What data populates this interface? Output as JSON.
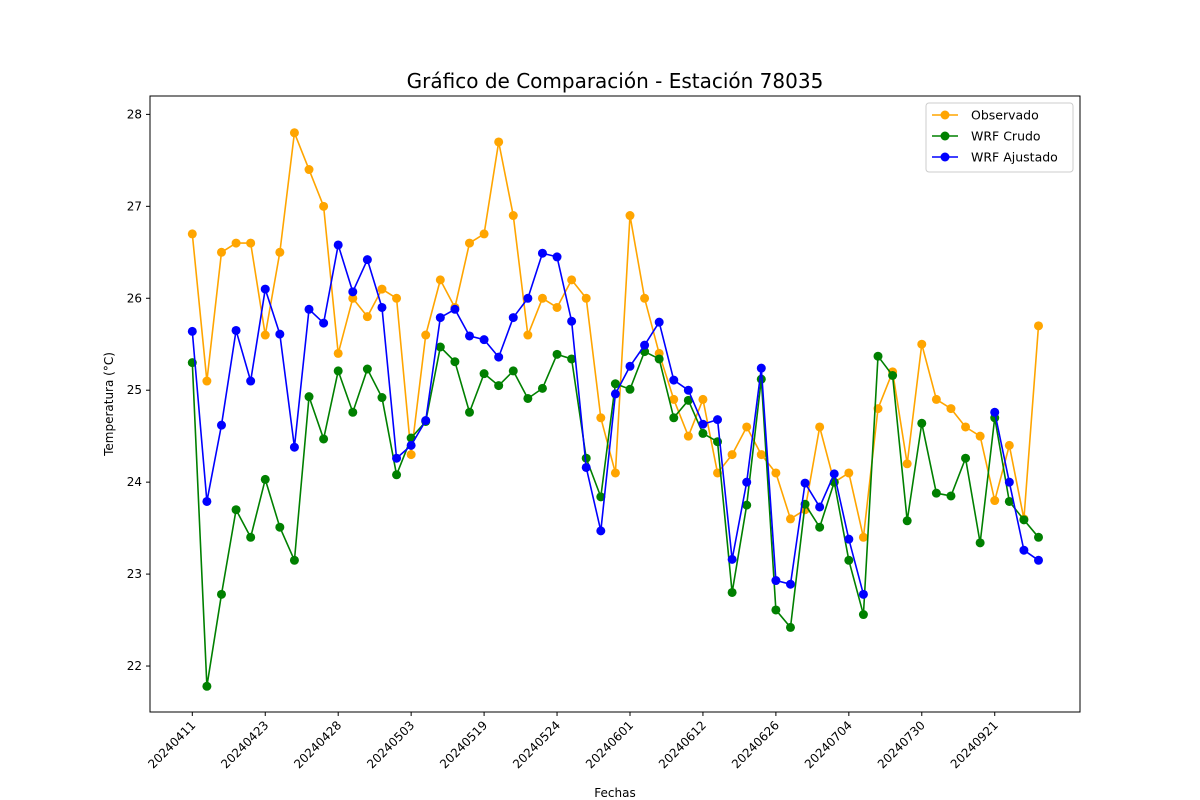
{
  "chart_data": {
    "type": "line",
    "title": "Gráfico de Comparación - Estación 78035",
    "xlabel": "Fechas",
    "ylabel": "Temperatura (°C)",
    "ylim": [
      21.5,
      28.2
    ],
    "yticks": [
      22,
      23,
      24,
      25,
      26,
      27,
      28
    ],
    "xticks": [
      {
        "index": 0,
        "label": "20240411"
      },
      {
        "index": 5,
        "label": "20240423"
      },
      {
        "index": 10,
        "label": "20240428"
      },
      {
        "index": 15,
        "label": "20240503"
      },
      {
        "index": 20,
        "label": "20240519"
      },
      {
        "index": 25,
        "label": "20240524"
      },
      {
        "index": 30,
        "label": "20240601"
      },
      {
        "index": 35,
        "label": "20240612"
      },
      {
        "index": 40,
        "label": "20240626"
      },
      {
        "index": 45,
        "label": "20240704"
      },
      {
        "index": 50,
        "label": "20240730"
      },
      {
        "index": 55,
        "label": "20240921"
      }
    ],
    "grid": false,
    "legend_position": "top-right",
    "series": [
      {
        "name": "Observado",
        "color": "#ffa500",
        "values": [
          26.7,
          25.1,
          26.5,
          26.6,
          26.6,
          25.6,
          26.5,
          27.8,
          27.4,
          27.0,
          25.4,
          26.0,
          25.8,
          26.1,
          26.0,
          24.3,
          25.6,
          26.2,
          25.9,
          26.6,
          26.7,
          27.7,
          26.9,
          25.6,
          26.0,
          25.9,
          26.2,
          26.0,
          24.7,
          24.1,
          26.9,
          26.0,
          25.4,
          24.9,
          24.5,
          24.9,
          24.1,
          24.3,
          24.6,
          24.3,
          24.1,
          23.6,
          23.7,
          24.6,
          24.0,
          24.1,
          23.4,
          24.8,
          25.2,
          24.2,
          25.5,
          24.9,
          24.8,
          24.6,
          24.5,
          23.8,
          24.4,
          23.6,
          25.7
        ]
      },
      {
        "name": "WRF Crudo",
        "color": "#008000",
        "values": [
          25.3,
          21.78,
          22.78,
          23.7,
          23.4,
          24.03,
          23.51,
          23.15,
          24.93,
          24.47,
          25.21,
          24.76,
          25.23,
          24.92,
          24.08,
          24.48,
          24.66,
          25.47,
          25.31,
          24.76,
          25.18,
          25.05,
          25.21,
          24.91,
          25.02,
          25.39,
          25.34,
          24.26,
          23.84,
          25.07,
          25.01,
          25.42,
          25.34,
          24.7,
          24.89,
          24.53,
          24.44,
          22.8,
          23.75,
          25.12,
          22.61,
          22.42,
          23.76,
          23.51,
          24.0,
          23.15,
          22.56,
          25.37,
          25.16,
          23.58,
          24.64,
          23.88,
          23.85,
          24.26,
          23.34,
          24.7,
          23.79,
          23.59,
          23.4
        ]
      },
      {
        "name": "WRF Ajustado",
        "color": "#0000ff",
        "values": [
          25.64,
          23.79,
          24.62,
          25.65,
          25.1,
          26.1,
          25.61,
          24.38,
          25.88,
          25.73,
          26.58,
          26.07,
          26.42,
          25.9,
          24.26,
          24.4,
          24.67,
          25.79,
          25.88,
          25.59,
          25.55,
          25.36,
          25.79,
          26.0,
          26.49,
          26.45,
          25.75,
          24.16,
          23.47,
          24.96,
          25.26,
          25.49,
          25.74,
          25.11,
          25.0,
          24.63,
          24.68,
          23.16,
          24.0,
          25.24,
          22.93,
          22.89,
          23.99,
          23.73,
          24.09,
          23.38,
          22.78,
          null,
          null,
          null,
          null,
          null,
          null,
          null,
          null,
          24.76,
          24.0,
          23.26,
          23.15
        ]
      }
    ]
  }
}
